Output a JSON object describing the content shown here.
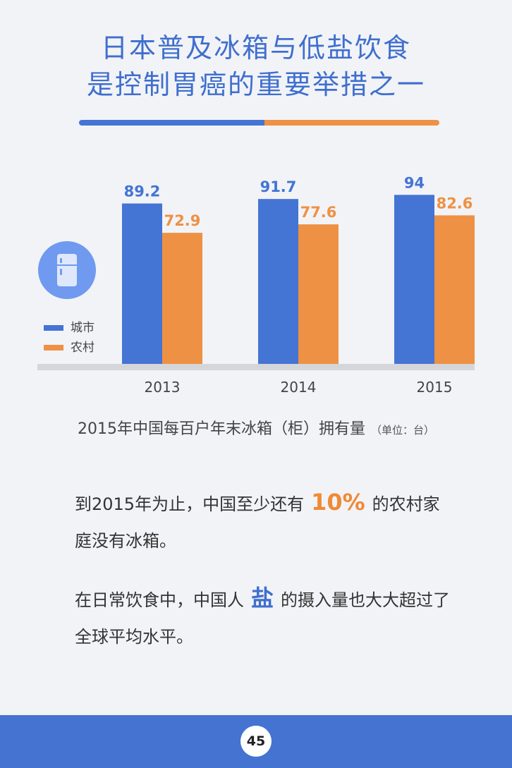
{
  "header": {
    "title_line1": "日本普及冰箱与低盐饮食",
    "title_line2": "是控制胃癌的重要举措之一"
  },
  "colors": {
    "city": "#4474d4",
    "rural": "#ee9144",
    "title": "#3f6fce",
    "footer": "#4473d1"
  },
  "chart_data": {
    "type": "bar",
    "categories": [
      "2013",
      "2014",
      "2015"
    ],
    "series": [
      {
        "name": "城市",
        "values": [
          89.2,
          91.7,
          94
        ],
        "color": "#4474d4"
      },
      {
        "name": "农村",
        "values": [
          72.9,
          77.6,
          82.6
        ],
        "color": "#ee9144"
      }
    ],
    "data_labels": {
      "城市": [
        "89.2",
        "91.7",
        "94"
      ],
      "农村": [
        "72.9",
        "77.6",
        "82.6"
      ]
    },
    "ylim": [
      0,
      100
    ],
    "legend_position": "left",
    "grid": false,
    "title": "2015年中国每百户年末冰箱（柜）拥有量",
    "unit": "（单位：台）"
  },
  "icon": "fridge-icon",
  "paragraphs": {
    "p1_before": "到2015年为止，中国至少还有",
    "p1_highlight": "10%",
    "p1_after": "的农村家庭没有冰箱。",
    "p2_before": "在日常饮食中，中国人",
    "p2_highlight": "盐",
    "p2_after": "的摄入量也大大超过了全球平均水平。"
  },
  "footer": {
    "page_number": "45"
  }
}
